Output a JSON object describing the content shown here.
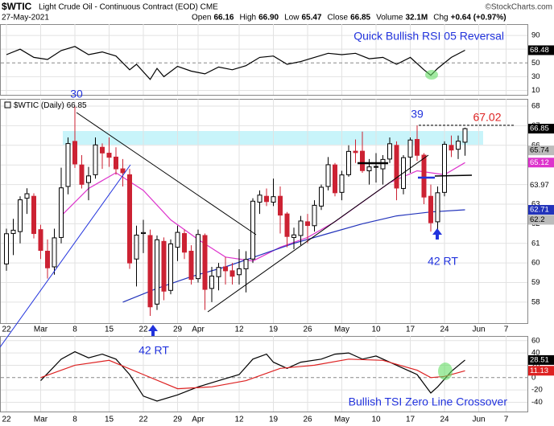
{
  "header": {
    "symbol": "$WTIC",
    "name": "Light Crude Oil - Continuous Contract (EOD) CME",
    "date": "27-May-2021",
    "source": "©StockCharts.com",
    "stats": [
      {
        "label": "Open",
        "value": "66.16"
      },
      {
        "label": "High",
        "value": "66.90"
      },
      {
        "label": "Low",
        "value": "65.47"
      },
      {
        "label": "Close",
        "value": "66.85"
      },
      {
        "label": "Volume",
        "value": "32.1M"
      },
      {
        "label": "Chg",
        "value": "+0.64 (+0.97%)"
      }
    ]
  },
  "chart_data": [
    {
      "type": "line",
      "annotation": "Quick Bullish RSI 05 Reversal",
      "ylim": [
        3.5,
        106.5
      ],
      "yticks": [
        10,
        30,
        50,
        70,
        90
      ],
      "grid": true,
      "series": [
        {
          "color": "#000000",
          "x": [
            0,
            2,
            4,
            6,
            8,
            10,
            12,
            14,
            16,
            18,
            19,
            21,
            22,
            23,
            25,
            27,
            29,
            31,
            33,
            35,
            37,
            39,
            41,
            43,
            45,
            47,
            49,
            51,
            53,
            55,
            57,
            59,
            61,
            62,
            63,
            65,
            67
          ],
          "values": [
            62,
            70,
            58,
            55,
            68,
            74,
            62,
            66,
            60,
            40,
            48,
            26,
            42,
            30,
            45,
            38,
            34,
            44,
            40,
            46,
            58,
            60,
            48,
            52,
            58,
            64,
            62,
            64,
            56,
            58,
            48,
            58,
            40,
            32,
            42,
            58,
            68.48
          ]
        }
      ]
    },
    {
      "type": "candlestick",
      "legend": "$WTIC (Daily)",
      "ylim": [
        56.93,
        68.37
      ],
      "yticks": [
        58,
        59,
        60,
        61,
        62,
        63,
        64,
        65,
        66,
        67,
        68
      ],
      "grid": true,
      "categories": [
        "22",
        null,
        null,
        null,
        null,
        "Mar",
        null,
        null,
        null,
        null,
        "8",
        null,
        null,
        null,
        null,
        "15",
        null,
        null,
        null,
        null,
        "22",
        null,
        null,
        null,
        null,
        "29",
        null,
        null,
        "Apr",
        null,
        null,
        null,
        null,
        null,
        "12",
        null,
        null,
        null,
        null,
        "19",
        null,
        null,
        null,
        null,
        "26",
        null,
        null,
        null,
        null,
        "May",
        null,
        null,
        null,
        null,
        "10",
        null,
        null,
        null,
        null,
        "17",
        null,
        null,
        null,
        null,
        "24",
        null,
        null,
        null,
        null,
        "Jun",
        null,
        null,
        null,
        "7",
        null,
        null
      ],
      "open": [
        59.95,
        61.5,
        61.6,
        63.3,
        63.4,
        61.7,
        60.6,
        59.8,
        61.3,
        63.9,
        66.2,
        65,
        64.1,
        64.5,
        65.9,
        65.6,
        65.4,
        64.8,
        64.5,
        60.2,
        61.5,
        61.4,
        57.9,
        61.1,
        58.6,
        60.8,
        61.5,
        60.6,
        59.2,
        61.4,
        58.7,
        59.3,
        59.8,
        59.6,
        59.4,
        59.7,
        60.2,
        63.1,
        63.4,
        63.1,
        63.4,
        62.5,
        61.3,
        61.4,
        62.1,
        61.9,
        62.9,
        63.9,
        65,
        63.6,
        64.5,
        65.7,
        65.7,
        64.7,
        64.9,
        64.8,
        65.3,
        66,
        63.8,
        65.4,
        66.3,
        65.5,
        63.4,
        62.1,
        63.6,
        66,
        65.8,
        66.16,
        null,
        null,
        null,
        null,
        null,
        null,
        null,
        null
      ],
      "high": [
        61.75,
        62.25,
        63.4,
        63.81,
        63.55,
        61.95,
        61.2,
        61.75,
        64.86,
        66.4,
        67.98,
        65.5,
        64.9,
        66.4,
        66.1,
        66.4,
        65.9,
        65.3,
        64.8,
        61.9,
        62.2,
        61.7,
        61.4,
        61.3,
        61.2,
        61.9,
        61.7,
        60.9,
        61.7,
        61.5,
        59.8,
        60,
        60.3,
        60,
        60.7,
        60.6,
        63.3,
        63.7,
        63.8,
        64.3,
        63.9,
        62.6,
        61.8,
        62.4,
        62.5,
        63.2,
        64,
        65.4,
        65.1,
        64.7,
        66,
        66.3,
        66.7,
        65.3,
        65.6,
        65.5,
        66.4,
        66.2,
        65.5,
        66.4,
        67.02,
        65.6,
        64,
        63.9,
        66.2,
        66.5,
        66.5,
        66.9,
        null,
        null,
        null,
        null,
        null,
        null,
        null,
        null
      ],
      "low": [
        59.6,
        60.4,
        61,
        62.5,
        61.25,
        60.2,
        59.2,
        59.4,
        61,
        63.5,
        64.85,
        63.8,
        63.2,
        64.3,
        64.8,
        64.9,
        64.5,
        63.9,
        59.7,
        58.8,
        60.5,
        57.3,
        57.6,
        58.1,
        58.4,
        60.1,
        60.2,
        58.9,
        59,
        57.6,
        58,
        58.6,
        58.9,
        58.9,
        58.9,
        58.5,
        60,
        62.5,
        62.9,
        62.9,
        61.5,
        60.8,
        60.7,
        60.9,
        61,
        61.6,
        62.7,
        63.7,
        63.4,
        63.2,
        64.4,
        65.1,
        64.6,
        64,
        64.1,
        64,
        65.1,
        63.2,
        63.5,
        64.6,
        65.2,
        63,
        61.6,
        61.6,
        63.4,
        65.4,
        65.3,
        65.47,
        null,
        null,
        null,
        null,
        null,
        null,
        null,
        null
      ],
      "close": [
        61.49,
        61.67,
        63.22,
        63.53,
        61.5,
        60.64,
        59.75,
        61.28,
        63.83,
        66.09,
        65.05,
        64.01,
        64.44,
        66.02,
        65.61,
        65.39,
        64.8,
        64.6,
        60,
        61.42,
        61.55,
        57.76,
        61.18,
        58.56,
        60.97,
        61.56,
        60.55,
        59.16,
        61.45,
        58.65,
        59.33,
        59.77,
        59.6,
        59.32,
        59.7,
        60.18,
        63.15,
        63.46,
        63.13,
        63.38,
        62.44,
        61.35,
        61.43,
        62.14,
        61.91,
        62.94,
        63.86,
        65.01,
        63.58,
        64.49,
        65.69,
        65.63,
        64.71,
        64.9,
        64.92,
        65.28,
        66.08,
        63.82,
        65.37,
        66.27,
        65.49,
        63.36,
        62.05,
        63.58,
        66.05,
        65.76,
        66.21,
        66.85,
        null,
        null,
        null,
        null,
        null,
        null,
        null,
        null
      ],
      "up_color": "#000000",
      "down_color": "#cc2233",
      "series": [
        {
          "color": "#dd33cc",
          "x": [
            8,
            12,
            16,
            20,
            24,
            28,
            32,
            36,
            40,
            44,
            48,
            52,
            56,
            60,
            64,
            67
          ],
          "values": [
            62.4,
            63.8,
            64.6,
            63.7,
            62.2,
            61.2,
            60.3,
            60.1,
            60.8,
            61.3,
            62.1,
            63.1,
            64.1,
            64.7,
            64.5,
            65.12
          ]
        },
        {
          "color": "#2233bb",
          "x": [
            17,
            22,
            27,
            32,
            37,
            42,
            47,
            52,
            57,
            62,
            67
          ],
          "values": [
            58,
            58.7,
            59.3,
            59.8,
            60.4,
            61,
            61.5,
            62,
            62.4,
            62.6,
            62.71
          ]
        }
      ],
      "right_labels": [
        {
          "value": 65.74,
          "color": "#bbbbbb"
        },
        {
          "value": 63.97,
          "color": "#ffffff"
        },
        {
          "value": 62.2,
          "color": "#bbbbbb"
        }
      ],
      "resistance": 67.02,
      "annotations": [
        "30",
        "39",
        "42 RT",
        "42 RT"
      ]
    },
    {
      "type": "line",
      "annotation": "Bullish TSI Zero Line Crossover",
      "ylim": [
        -55,
        67.5
      ],
      "yticks": [
        -40,
        -20,
        0,
        20,
        40,
        60
      ],
      "grid": true,
      "series": [
        {
          "color": "#000000",
          "x": [
            5,
            8,
            10,
            12,
            14,
            16,
            18,
            20,
            22,
            25,
            28,
            31,
            34,
            36,
            38,
            39,
            41,
            43,
            46,
            48,
            50,
            52,
            54,
            56,
            58,
            60,
            62,
            63,
            65,
            67
          ],
          "values": [
            -5,
            30,
            42,
            32,
            38,
            30,
            5,
            -30,
            -38,
            -28,
            -15,
            -5,
            5,
            30,
            38,
            25,
            15,
            25,
            30,
            38,
            40,
            30,
            35,
            25,
            15,
            5,
            -25,
            -15,
            10,
            28.51
          ]
        },
        {
          "color": "#dd2222",
          "x": [
            5,
            10,
            15,
            20,
            25,
            30,
            35,
            40,
            45,
            50,
            55,
            60,
            62,
            64,
            67
          ],
          "values": [
            0,
            20,
            28,
            5,
            -18,
            -15,
            -5,
            15,
            20,
            30,
            28,
            12,
            0,
            2,
            11.13
          ]
        }
      ]
    }
  ]
}
